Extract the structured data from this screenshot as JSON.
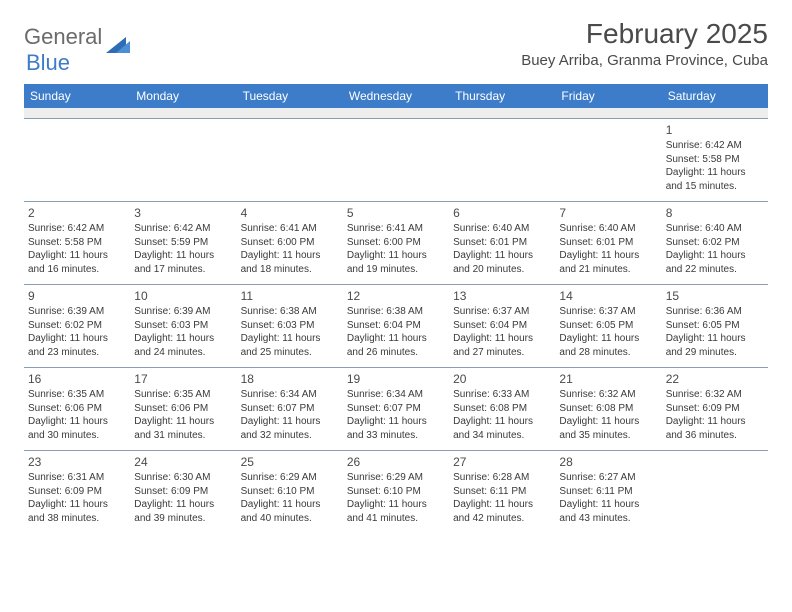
{
  "logo": {
    "part1": "General",
    "part2": "Blue"
  },
  "title": "February 2025",
  "location": "Buey Arriba, Granma Province, Cuba",
  "header_bg": "#3d7cc9",
  "weekdays": [
    "Sunday",
    "Monday",
    "Tuesday",
    "Wednesday",
    "Thursday",
    "Friday",
    "Saturday"
  ],
  "weeks": [
    [
      null,
      null,
      null,
      null,
      null,
      null,
      {
        "n": "1",
        "sunrise": "6:42 AM",
        "sunset": "5:58 PM",
        "dlh": "11",
        "dlm": "15"
      }
    ],
    [
      {
        "n": "2",
        "sunrise": "6:42 AM",
        "sunset": "5:58 PM",
        "dlh": "11",
        "dlm": "16"
      },
      {
        "n": "3",
        "sunrise": "6:42 AM",
        "sunset": "5:59 PM",
        "dlh": "11",
        "dlm": "17"
      },
      {
        "n": "4",
        "sunrise": "6:41 AM",
        "sunset": "6:00 PM",
        "dlh": "11",
        "dlm": "18"
      },
      {
        "n": "5",
        "sunrise": "6:41 AM",
        "sunset": "6:00 PM",
        "dlh": "11",
        "dlm": "19"
      },
      {
        "n": "6",
        "sunrise": "6:40 AM",
        "sunset": "6:01 PM",
        "dlh": "11",
        "dlm": "20"
      },
      {
        "n": "7",
        "sunrise": "6:40 AM",
        "sunset": "6:01 PM",
        "dlh": "11",
        "dlm": "21"
      },
      {
        "n": "8",
        "sunrise": "6:40 AM",
        "sunset": "6:02 PM",
        "dlh": "11",
        "dlm": "22"
      }
    ],
    [
      {
        "n": "9",
        "sunrise": "6:39 AM",
        "sunset": "6:02 PM",
        "dlh": "11",
        "dlm": "23"
      },
      {
        "n": "10",
        "sunrise": "6:39 AM",
        "sunset": "6:03 PM",
        "dlh": "11",
        "dlm": "24"
      },
      {
        "n": "11",
        "sunrise": "6:38 AM",
        "sunset": "6:03 PM",
        "dlh": "11",
        "dlm": "25"
      },
      {
        "n": "12",
        "sunrise": "6:38 AM",
        "sunset": "6:04 PM",
        "dlh": "11",
        "dlm": "26"
      },
      {
        "n": "13",
        "sunrise": "6:37 AM",
        "sunset": "6:04 PM",
        "dlh": "11",
        "dlm": "27"
      },
      {
        "n": "14",
        "sunrise": "6:37 AM",
        "sunset": "6:05 PM",
        "dlh": "11",
        "dlm": "28"
      },
      {
        "n": "15",
        "sunrise": "6:36 AM",
        "sunset": "6:05 PM",
        "dlh": "11",
        "dlm": "29"
      }
    ],
    [
      {
        "n": "16",
        "sunrise": "6:35 AM",
        "sunset": "6:06 PM",
        "dlh": "11",
        "dlm": "30"
      },
      {
        "n": "17",
        "sunrise": "6:35 AM",
        "sunset": "6:06 PM",
        "dlh": "11",
        "dlm": "31"
      },
      {
        "n": "18",
        "sunrise": "6:34 AM",
        "sunset": "6:07 PM",
        "dlh": "11",
        "dlm": "32"
      },
      {
        "n": "19",
        "sunrise": "6:34 AM",
        "sunset": "6:07 PM",
        "dlh": "11",
        "dlm": "33"
      },
      {
        "n": "20",
        "sunrise": "6:33 AM",
        "sunset": "6:08 PM",
        "dlh": "11",
        "dlm": "34"
      },
      {
        "n": "21",
        "sunrise": "6:32 AM",
        "sunset": "6:08 PM",
        "dlh": "11",
        "dlm": "35"
      },
      {
        "n": "22",
        "sunrise": "6:32 AM",
        "sunset": "6:09 PM",
        "dlh": "11",
        "dlm": "36"
      }
    ],
    [
      {
        "n": "23",
        "sunrise": "6:31 AM",
        "sunset": "6:09 PM",
        "dlh": "11",
        "dlm": "38"
      },
      {
        "n": "24",
        "sunrise": "6:30 AM",
        "sunset": "6:09 PM",
        "dlh": "11",
        "dlm": "39"
      },
      {
        "n": "25",
        "sunrise": "6:29 AM",
        "sunset": "6:10 PM",
        "dlh": "11",
        "dlm": "40"
      },
      {
        "n": "26",
        "sunrise": "6:29 AM",
        "sunset": "6:10 PM",
        "dlh": "11",
        "dlm": "41"
      },
      {
        "n": "27",
        "sunrise": "6:28 AM",
        "sunset": "6:11 PM",
        "dlh": "11",
        "dlm": "42"
      },
      {
        "n": "28",
        "sunrise": "6:27 AM",
        "sunset": "6:11 PM",
        "dlh": "11",
        "dlm": "43"
      },
      null
    ]
  ]
}
